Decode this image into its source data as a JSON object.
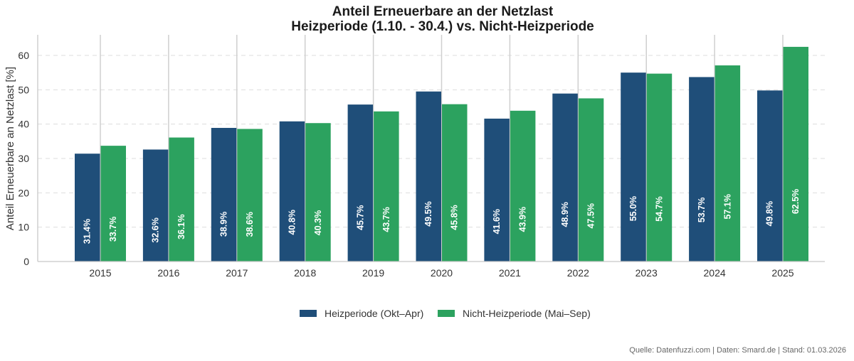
{
  "chart_data": {
    "type": "bar",
    "title_line1": "Anteil Erneuerbare an der Netzlast",
    "title_line2": "Heizperiode (1.10. - 30.4.) vs. Nicht-Heizperiode",
    "xlabel": "",
    "ylabel": "Anteil Erneuerbare an Netzlast [%]",
    "ylim": [
      0,
      66
    ],
    "yticks": [
      0,
      10,
      20,
      30,
      40,
      50,
      60
    ],
    "grid": "horizontal-dashed",
    "legend_position": "bottom-center",
    "categories": [
      "2015",
      "2016",
      "2017",
      "2018",
      "2019",
      "2020",
      "2021",
      "2022",
      "2023",
      "2024",
      "2025"
    ],
    "series": [
      {
        "name": "Heizperiode (Okt–Apr)",
        "color": "#1f4e79",
        "values": [
          31.4,
          32.6,
          38.9,
          40.8,
          45.7,
          49.5,
          41.6,
          48.9,
          55.0,
          53.7,
          49.8
        ],
        "labels": [
          "31.4%",
          "32.6%",
          "38.9%",
          "40.8%",
          "45.7%",
          "49.5%",
          "41.6%",
          "48.9%",
          "55.0%",
          "53.7%",
          "49.8%"
        ]
      },
      {
        "name": "Nicht-Heizperiode (Mai–Sep)",
        "color": "#2ca25f",
        "values": [
          33.7,
          36.1,
          38.6,
          40.3,
          43.7,
          45.8,
          43.9,
          47.5,
          54.7,
          57.1,
          62.5
        ],
        "labels": [
          "33.7%",
          "36.1%",
          "38.6%",
          "40.3%",
          "43.7%",
          "45.8%",
          "43.9%",
          "47.5%",
          "54.7%",
          "57.1%",
          "62.5%"
        ]
      }
    ],
    "source_note": "Quelle: Datenfuzzi.com | Daten: Smard.de | Stand: 01.03.2026"
  }
}
